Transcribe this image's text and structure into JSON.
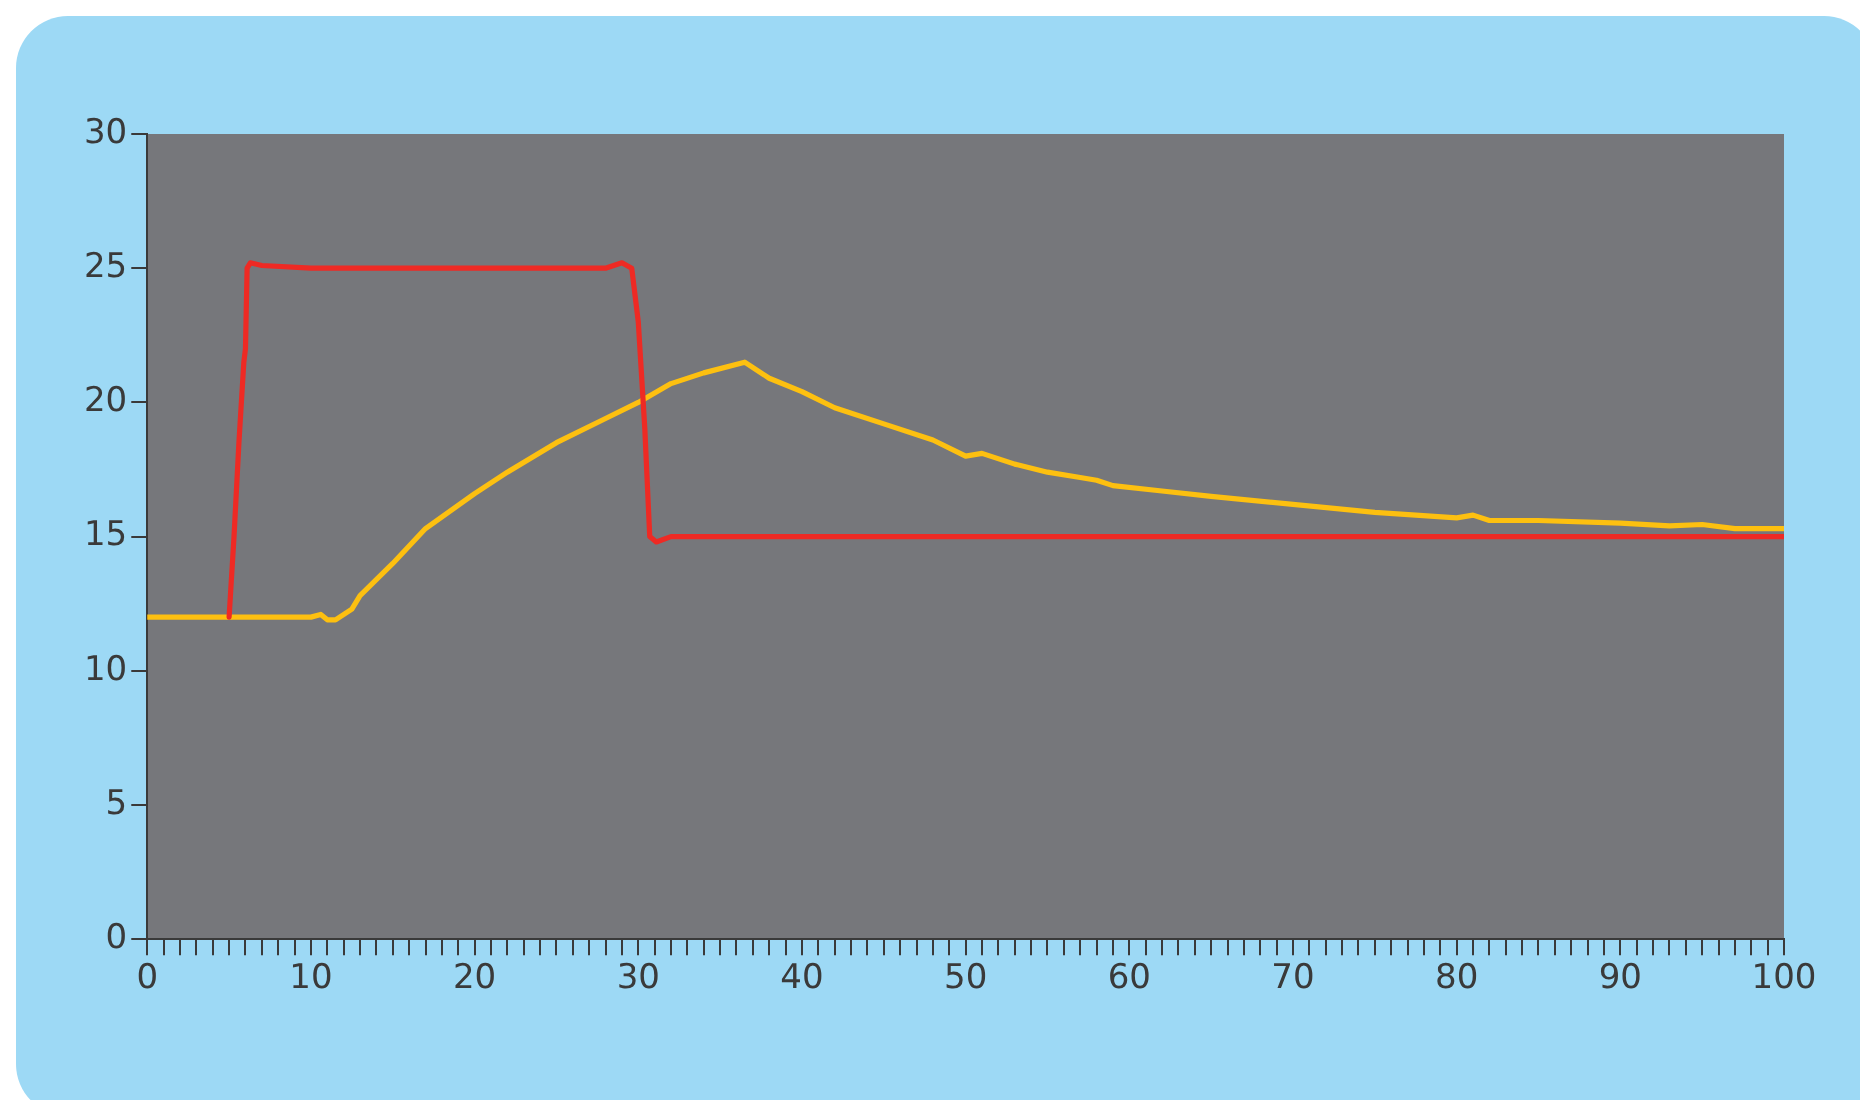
{
  "chart_data": {
    "type": "line",
    "xlim": [
      0,
      100
    ],
    "ylim": [
      0,
      30
    ],
    "xticks": [
      0,
      {
        "value": 1,
        "label": null
      },
      {
        "value": 2,
        "label": null
      },
      {
        "value": 3,
        "label": null
      },
      {
        "value": 4,
        "label": null
      },
      {
        "value": 5,
        "label": null
      },
      {
        "value": 6,
        "label": null
      },
      {
        "value": 7,
        "label": null
      },
      {
        "value": 8,
        "label": null
      },
      {
        "value": 9,
        "label": null
      },
      10,
      {
        "value": 11,
        "label": null
      },
      {
        "value": 12,
        "label": null
      },
      {
        "value": 13,
        "label": null
      },
      {
        "value": 14,
        "label": null
      },
      {
        "value": 15,
        "label": null
      },
      {
        "value": 16,
        "label": null
      },
      {
        "value": 17,
        "label": null
      },
      {
        "value": 18,
        "label": null
      },
      {
        "value": 19,
        "label": null
      },
      20,
      {
        "value": 21,
        "label": null
      },
      {
        "value": 22,
        "label": null
      },
      {
        "value": 23,
        "label": null
      },
      {
        "value": 24,
        "label": null
      },
      {
        "value": 25,
        "label": null
      },
      {
        "value": 26,
        "label": null
      },
      {
        "value": 27,
        "label": null
      },
      {
        "value": 28,
        "label": null
      },
      {
        "value": 29,
        "label": null
      },
      30,
      {
        "value": 31,
        "label": null
      },
      {
        "value": 32,
        "label": null
      },
      {
        "value": 33,
        "label": null
      },
      {
        "value": 34,
        "label": null
      },
      {
        "value": 35,
        "label": null
      },
      {
        "value": 36,
        "label": null
      },
      {
        "value": 37,
        "label": null
      },
      {
        "value": 38,
        "label": null
      },
      {
        "value": 39,
        "label": null
      },
      40,
      {
        "value": 41,
        "label": null
      },
      {
        "value": 42,
        "label": null
      },
      {
        "value": 43,
        "label": null
      },
      {
        "value": 44,
        "label": null
      },
      {
        "value": 45,
        "label": null
      },
      {
        "value": 46,
        "label": null
      },
      {
        "value": 47,
        "label": null
      },
      {
        "value": 48,
        "label": null
      },
      {
        "value": 49,
        "label": null
      },
      50,
      {
        "value": 51,
        "label": null
      },
      {
        "value": 52,
        "label": null
      },
      {
        "value": 53,
        "label": null
      },
      {
        "value": 54,
        "label": null
      },
      {
        "value": 55,
        "label": null
      },
      {
        "value": 56,
        "label": null
      },
      {
        "value": 57,
        "label": null
      },
      {
        "value": 58,
        "label": null
      },
      {
        "value": 59,
        "label": null
      },
      60,
      {
        "value": 61,
        "label": null
      },
      {
        "value": 62,
        "label": null
      },
      {
        "value": 63,
        "label": null
      },
      {
        "value": 64,
        "label": null
      },
      {
        "value": 65,
        "label": null
      },
      {
        "value": 66,
        "label": null
      },
      {
        "value": 67,
        "label": null
      },
      {
        "value": 68,
        "label": null
      },
      {
        "value": 69,
        "label": null
      },
      70,
      {
        "value": 71,
        "label": null
      },
      {
        "value": 72,
        "label": null
      },
      {
        "value": 73,
        "label": null
      },
      {
        "value": 74,
        "label": null
      },
      {
        "value": 75,
        "label": null
      },
      {
        "value": 76,
        "label": null
      },
      {
        "value": 77,
        "label": null
      },
      {
        "value": 78,
        "label": null
      },
      {
        "value": 79,
        "label": null
      },
      80,
      {
        "value": 81,
        "label": null
      },
      {
        "value": 82,
        "label": null
      },
      {
        "value": 83,
        "label": null
      },
      {
        "value": 84,
        "label": null
      },
      {
        "value": 85,
        "label": null
      },
      {
        "value": 86,
        "label": null
      },
      {
        "value": 87,
        "label": null
      },
      {
        "value": 88,
        "label": null
      },
      {
        "value": 89,
        "label": null
      },
      90,
      {
        "value": 91,
        "label": null
      },
      {
        "value": 92,
        "label": null
      },
      {
        "value": 93,
        "label": null
      },
      {
        "value": 94,
        "label": null
      },
      {
        "value": 95,
        "label": null
      },
      {
        "value": 96,
        "label": null
      },
      {
        "value": 97,
        "label": null
      },
      {
        "value": 98,
        "label": null
      },
      {
        "value": 99,
        "label": null
      },
      100
    ],
    "yticks": [
      0,
      5,
      10,
      15,
      20,
      25,
      30
    ],
    "grid": false,
    "legend": false,
    "marker": "none",
    "line_style": "solid",
    "series": [
      {
        "color": "#ee2a24",
        "x": [
          5,
          5.3,
          5.6,
          5.9,
          6,
          6.1,
          6.3,
          7,
          10,
          28,
          29,
          29.6,
          30,
          30.4,
          30.7,
          31.1,
          32,
          100
        ],
        "values": [
          12,
          15,
          18.5,
          21.5,
          22,
          25,
          25.2,
          25.1,
          25,
          25,
          25.2,
          25,
          23,
          19,
          15,
          14.8,
          15,
          15
        ]
      },
      {
        "color": "#fdc010",
        "x": [
          0,
          10,
          10.6,
          11,
          11.5,
          12.5,
          13,
          15,
          17,
          20,
          22,
          25,
          28,
          30,
          32,
          34,
          36.5,
          38,
          40,
          42,
          45,
          48,
          50,
          51,
          53,
          55,
          57,
          58,
          59,
          62,
          65,
          70,
          75,
          80,
          81,
          82,
          85,
          90,
          93,
          95,
          97,
          100
        ],
        "values": [
          12,
          12,
          12.1,
          11.9,
          11.9,
          12.3,
          12.8,
          14,
          15.3,
          16.6,
          17.4,
          18.5,
          19.4,
          20,
          20.7,
          21.1,
          21.5,
          20.9,
          20.4,
          19.8,
          19.2,
          18.6,
          18,
          18.1,
          17.7,
          17.4,
          17.2,
          17.1,
          16.9,
          16.7,
          16.5,
          16.2,
          15.9,
          15.7,
          15.8,
          15.6,
          15.6,
          15.5,
          15.4,
          15.45,
          15.3,
          15.3
        ]
      }
    ]
  }
}
